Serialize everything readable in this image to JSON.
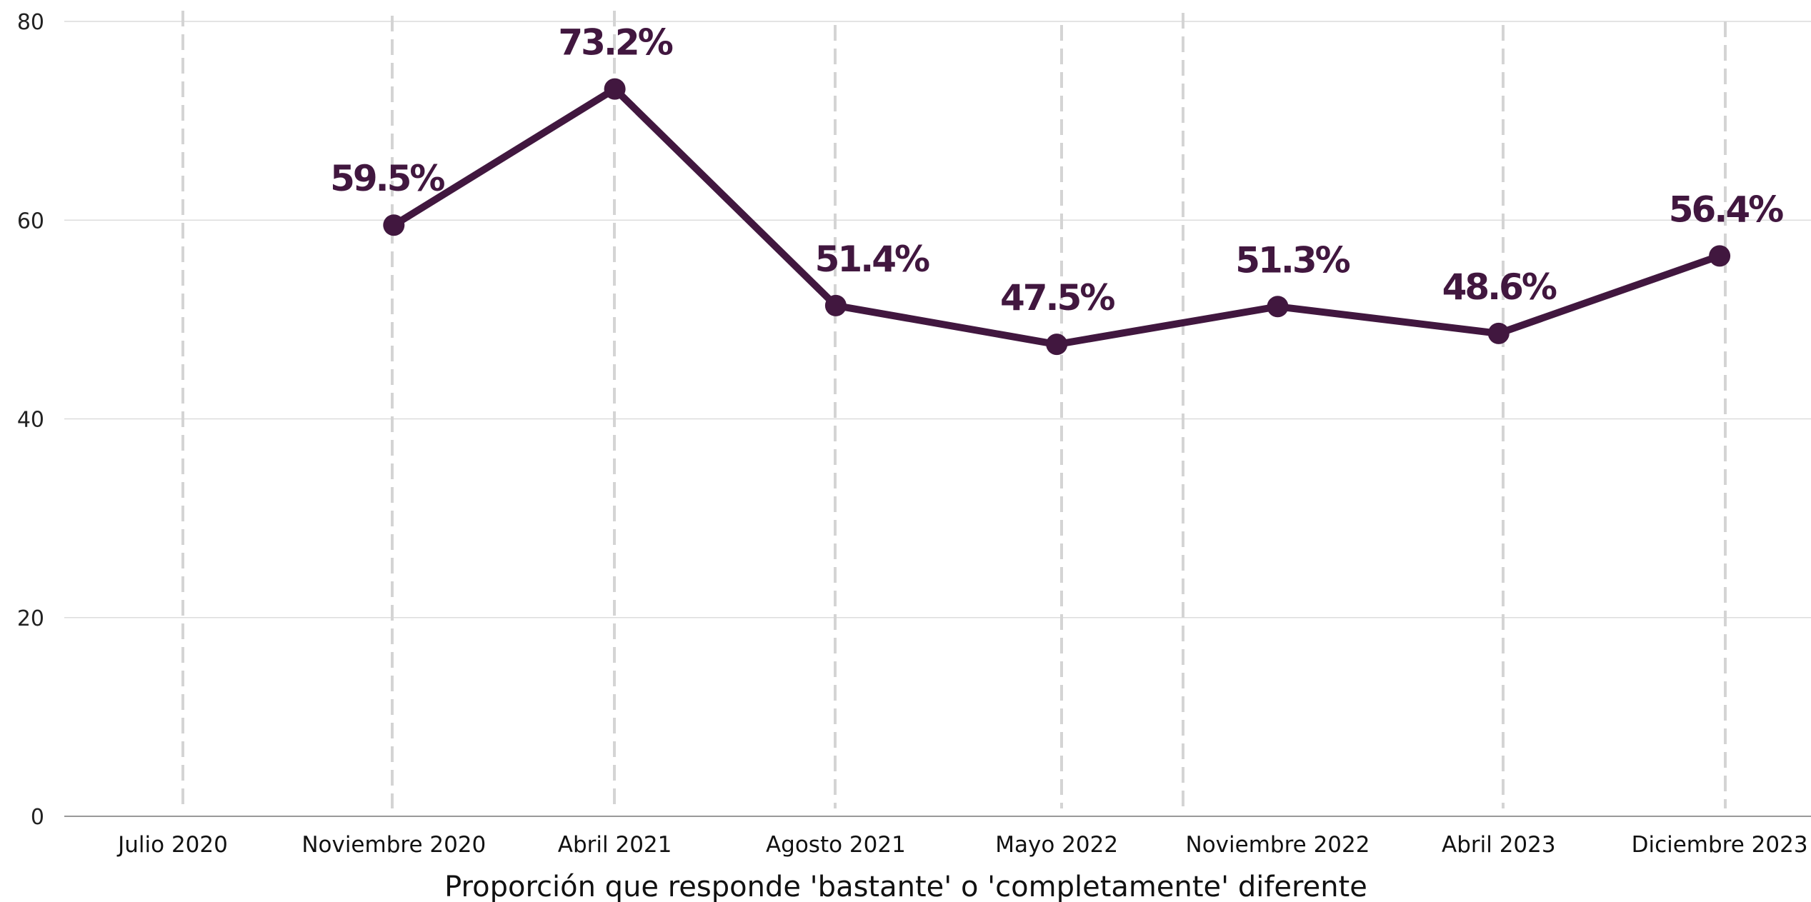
{
  "chart_data": {
    "type": "line",
    "title": "",
    "xlabel": "Proporción que responde 'bastante' o 'completamente' diferente",
    "ylabel": "",
    "ylim": [
      0,
      80
    ],
    "yticks": [
      "0",
      "20",
      "40",
      "60",
      "80"
    ],
    "grid": true,
    "categories": [
      "Julio 2020",
      "Noviembre 2020",
      "Abril 2021",
      "Agosto 2021",
      "Mayo 2022",
      "Noviembre 2022",
      "Abril 2023",
      "Diciembre 2023"
    ],
    "series": [
      {
        "color": "#41173f",
        "points": [
          {
            "x": "Noviembre 2020",
            "y": 59.5,
            "label": "59.5%"
          },
          {
            "x": "Abril 2021",
            "y": 73.2,
            "label": "73.2%"
          },
          {
            "x": "Agosto 2021",
            "y": 51.4,
            "label": "51.4%"
          },
          {
            "x": "Mayo 2022",
            "y": 47.5,
            "label": "47.5%"
          },
          {
            "x": "Noviembre 2022",
            "y": 51.3,
            "label": "51.3%"
          },
          {
            "x": "Abril 2023",
            "y": 48.6,
            "label": "48.6%"
          },
          {
            "x": "Diciembre 2023",
            "y": 56.4,
            "label": "56.4%"
          }
        ]
      }
    ],
    "colors": {
      "line": "#41173f",
      "grid": "#dcdcdc",
      "dashed": "#d4d4d4",
      "axis": "#999999"
    }
  }
}
